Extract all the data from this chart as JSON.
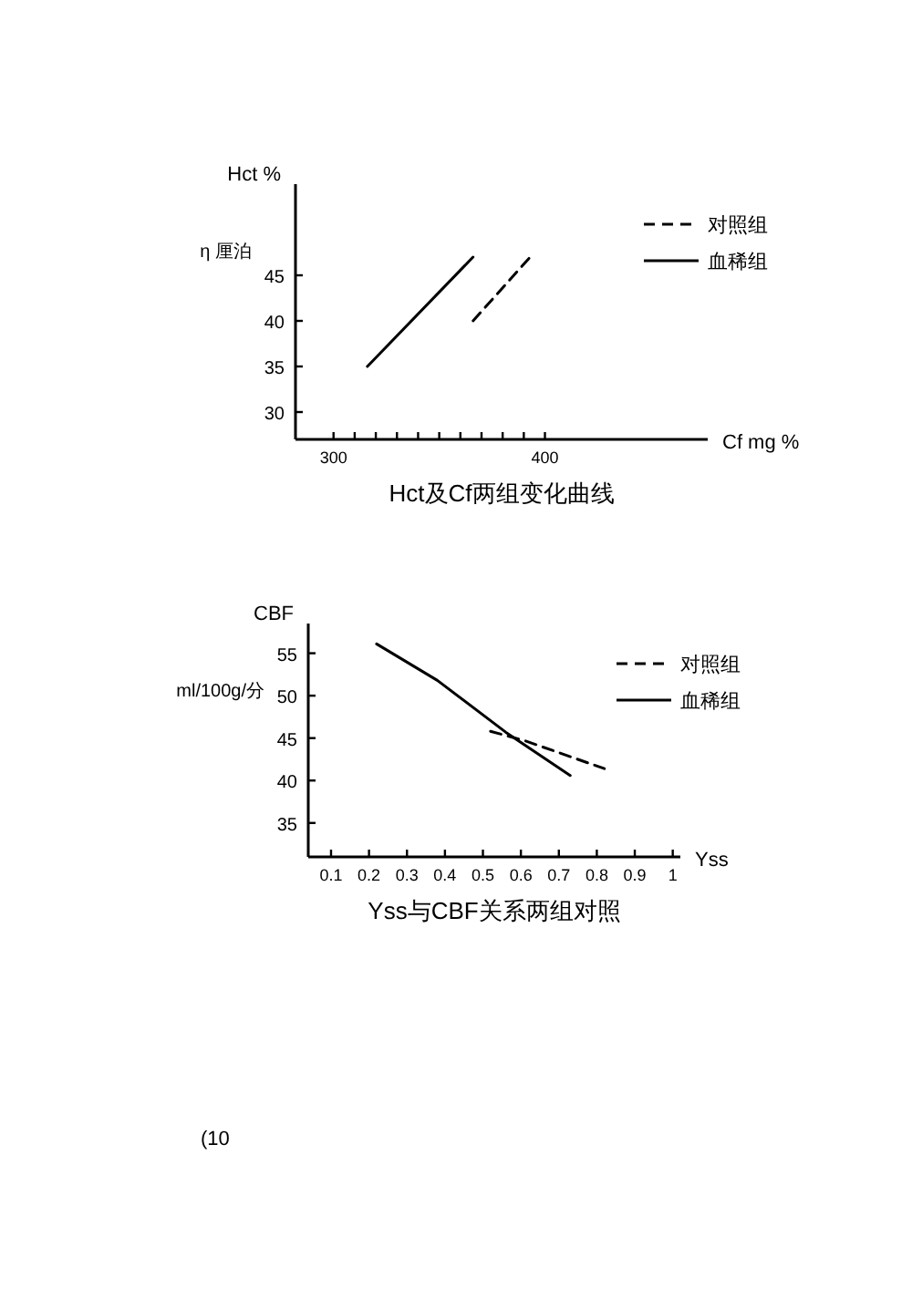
{
  "chart_data": [
    {
      "type": "line",
      "title": "Hct及Cf两组变化曲线",
      "xlabel": "Cf mg %",
      "ylabel": "Hct %",
      "annotations": [
        "η 厘泊"
      ],
      "legend": "top right",
      "xlim": [
        282,
        477
      ],
      "ylim": [
        27,
        55
      ],
      "xticks": [
        300,
        {
          "value": 310,
          "label": null
        },
        {
          "value": 320,
          "label": null
        },
        {
          "value": 330,
          "label": null
        },
        {
          "value": 340,
          "label": null
        },
        {
          "value": 350,
          "label": null
        },
        {
          "value": 360,
          "label": null
        },
        {
          "value": 370,
          "label": null
        },
        {
          "value": 380,
          "label": null
        },
        {
          "value": 390,
          "label": null
        },
        400
      ],
      "yticks": [
        30,
        35,
        40,
        45
      ],
      "series": [
        {
          "name": "对照组",
          "color": "#000000",
          "line_style": "dashed",
          "x": [
            366,
            393
          ],
          "values": [
            40,
            47
          ]
        },
        {
          "name": "血稀组",
          "color": "#000000",
          "line_style": "solid",
          "x": [
            316,
            366
          ],
          "values": [
            35,
            47
          ]
        }
      ]
    },
    {
      "type": "line",
      "title": "Yss与CBF关系两组对照",
      "xlabel": "Yss",
      "ylabel": "CBF",
      "annotations": [
        "ml/100g/分",
        "(10"
      ],
      "legend": "top right",
      "xlim": [
        0.04,
        1.02
      ],
      "ylim": [
        31,
        58.5
      ],
      "xticks": [
        0.1,
        0.2,
        0.3,
        0.4,
        0.5,
        0.6,
        0.7,
        0.8,
        0.9,
        1
      ],
      "yticks": [
        35,
        40,
        45,
        50,
        55
      ],
      "series": [
        {
          "name": "对照组",
          "color": "#000000",
          "line_style": "dashed",
          "x": [
            0.52,
            0.61,
            0.82
          ],
          "values": [
            45.8,
            44.7,
            41.4
          ]
        },
        {
          "name": "血稀组",
          "color": "#000000",
          "line_style": "solid",
          "x": [
            0.22,
            0.38,
            0.56,
            0.73
          ],
          "values": [
            56.1,
            51.8,
            45.7,
            40.6
          ]
        }
      ]
    }
  ]
}
